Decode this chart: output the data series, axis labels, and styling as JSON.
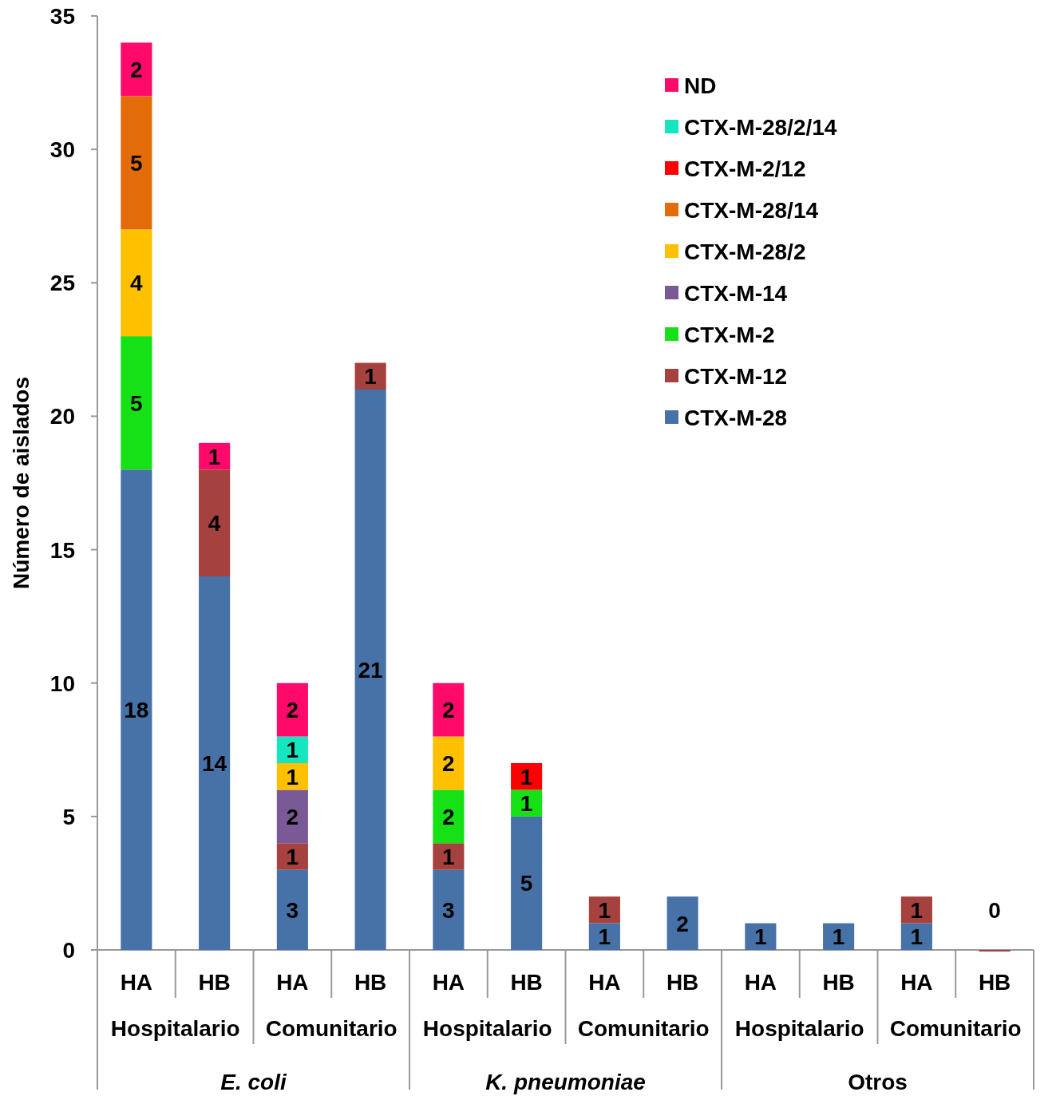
{
  "chart_data": {
    "type": "bar",
    "stacked": true,
    "ylabel": "Número de aislados",
    "ylim": [
      0,
      35
    ],
    "yticks": [
      0,
      5,
      10,
      15,
      20,
      25,
      30,
      35
    ],
    "grid": false,
    "legend": "top right",
    "data_labels": true,
    "categories": [
      "HA",
      "HB",
      "HA",
      "HB",
      "HA",
      "HB",
      "HA",
      "HB",
      "HA",
      "HB",
      "HA",
      "HB"
    ],
    "annotations": [
      "Hospitalario",
      "Comunitario",
      "Hospitalario",
      "Comunitario",
      "Hospitalario",
      "Comunitario",
      "E. coli",
      "K. pneumoniae",
      "Otros"
    ],
    "series": [
      {
        "name": "CTX-M-28",
        "color": "#4672a8",
        "values": [
          18,
          14,
          3,
          21,
          3,
          5,
          1,
          2,
          1,
          1,
          1,
          null
        ]
      },
      {
        "name": "CTX-M-12",
        "color": "#a5413e",
        "values": [
          null,
          4,
          1,
          1,
          1,
          null,
          1,
          null,
          null,
          null,
          1,
          0
        ]
      },
      {
        "name": "CTX-M-2",
        "color": "#16e016",
        "values": [
          5,
          null,
          null,
          null,
          2,
          1,
          null,
          null,
          null,
          null,
          null,
          null
        ]
      },
      {
        "name": "CTX-M-14",
        "color": "#7a5a96",
        "values": [
          null,
          null,
          2,
          null,
          null,
          null,
          null,
          null,
          null,
          null,
          null,
          null
        ]
      },
      {
        "name": "CTX-M-28/2",
        "color": "#ffc000",
        "values": [
          4,
          null,
          1,
          null,
          2,
          null,
          null,
          null,
          null,
          null,
          null,
          null
        ]
      },
      {
        "name": "CTX-M-28/14",
        "color": "#e36c0a",
        "values": [
          5,
          null,
          null,
          null,
          null,
          null,
          null,
          null,
          null,
          null,
          null,
          null
        ]
      },
      {
        "name": "CTX-M-2/12",
        "color": "#ff0000",
        "values": [
          null,
          null,
          null,
          null,
          null,
          1,
          null,
          null,
          null,
          null,
          null,
          null
        ]
      },
      {
        "name": "CTX-M-28/2/14",
        "color": "#16e6c0",
        "values": [
          null,
          null,
          1,
          null,
          null,
          null,
          null,
          null,
          null,
          null,
          null,
          null
        ]
      },
      {
        "name": "ND",
        "color": "#ff0a6a",
        "values": [
          2,
          1,
          2,
          null,
          2,
          null,
          null,
          null,
          null,
          null,
          null,
          null
        ]
      }
    ]
  }
}
